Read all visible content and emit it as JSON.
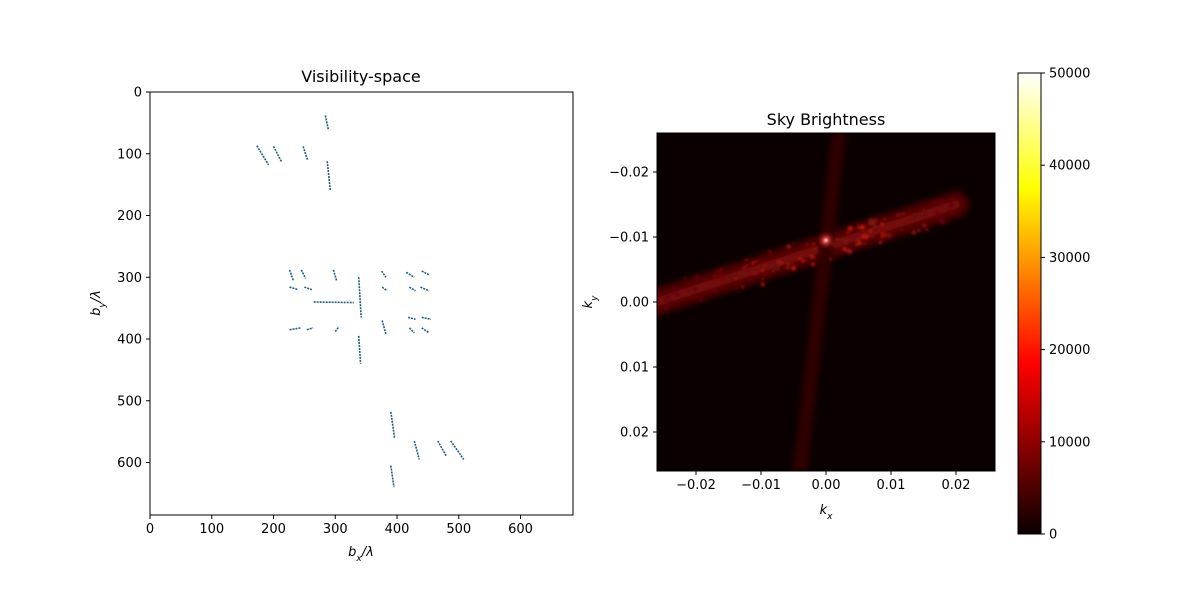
{
  "chart_data": [
    {
      "type": "scatter",
      "title": "Visibility-space",
      "xlabel": "b_x/λ",
      "ylabel": "b_y/λ",
      "xlim": [
        0,
        685
      ],
      "ylim": [
        685,
        0
      ],
      "y_inverted": true,
      "xticks": [
        "0",
        "100",
        "200",
        "300",
        "400",
        "500",
        "600"
      ],
      "yticks": [
        "0",
        "100",
        "200",
        "300",
        "400",
        "500",
        "600"
      ],
      "grid": false,
      "marker_color": "#1f5f7a",
      "track_segments": [
        {
          "x": [
            173,
            192
          ],
          "y": [
            87,
            118
          ]
        },
        {
          "x": [
            200,
            213
          ],
          "y": [
            88,
            113
          ]
        },
        {
          "x": [
            248,
            255
          ],
          "y": [
            88,
            110
          ]
        },
        {
          "x": [
            284,
            289
          ],
          "y": [
            38,
            62
          ]
        },
        {
          "x": [
            287,
            292
          ],
          "y": [
            112,
            160
          ]
        },
        {
          "x": [
            226,
            232
          ],
          "y": [
            288,
            305
          ]
        },
        {
          "x": [
            245,
            252
          ],
          "y": [
            288,
            302
          ]
        },
        {
          "x": [
            226,
            240
          ],
          "y": [
            316,
            320
          ]
        },
        {
          "x": [
            250,
            262
          ],
          "y": [
            316,
            320
          ]
        },
        {
          "x": [
            297,
            302
          ],
          "y": [
            288,
            305
          ]
        },
        {
          "x": [
            265,
            330
          ],
          "y": [
            340,
            341
          ]
        },
        {
          "x": [
            338,
            342
          ],
          "y": [
            300,
            365
          ]
        },
        {
          "x": [
            338,
            341
          ],
          "y": [
            395,
            440
          ]
        },
        {
          "x": [
            375,
            382
          ],
          "y": [
            290,
            300
          ]
        },
        {
          "x": [
            415,
            428
          ],
          "y": [
            292,
            300
          ]
        },
        {
          "x": [
            440,
            452
          ],
          "y": [
            290,
            296
          ]
        },
        {
          "x": [
            376,
            384
          ],
          "y": [
            316,
            322
          ]
        },
        {
          "x": [
            420,
            430
          ],
          "y": [
            316,
            322
          ]
        },
        {
          "x": [
            438,
            452
          ],
          "y": [
            316,
            322
          ]
        },
        {
          "x": [
            226,
            244
          ],
          "y": [
            385,
            382
          ]
        },
        {
          "x": [
            254,
            264
          ],
          "y": [
            385,
            382
          ]
        },
        {
          "x": [
            300,
            306
          ],
          "y": [
            388,
            380
          ]
        },
        {
          "x": [
            376,
            382
          ],
          "y": [
            370,
            392
          ]
        },
        {
          "x": [
            418,
            430
          ],
          "y": [
            365,
            368
          ]
        },
        {
          "x": [
            440,
            455
          ],
          "y": [
            365,
            368
          ]
        },
        {
          "x": [
            420,
            428
          ],
          "y": [
            382,
            390
          ]
        },
        {
          "x": [
            440,
            452
          ],
          "y": [
            382,
            390
          ]
        },
        {
          "x": [
            390,
            396
          ],
          "y": [
            518,
            560
          ]
        },
        {
          "x": [
            428,
            436
          ],
          "y": [
            565,
            595
          ]
        },
        {
          "x": [
            466,
            480
          ],
          "y": [
            565,
            590
          ]
        },
        {
          "x": [
            487,
            508
          ],
          "y": [
            565,
            595
          ]
        },
        {
          "x": [
            390,
            395
          ],
          "y": [
            605,
            640
          ]
        }
      ]
    },
    {
      "type": "heatmap",
      "title": "Sky Brightness",
      "xlabel": "k_x",
      "ylabel": "k_y",
      "xlim": [
        -0.026,
        0.026
      ],
      "ylim": [
        -0.026,
        0.026
      ],
      "y_inverted": true,
      "xticks": [
        "−0.02",
        "−0.01",
        "0.00",
        "0.01",
        "0.02"
      ],
      "yticks": [
        "−0.02",
        "−0.01",
        "0.00",
        "0.01",
        "0.02"
      ],
      "colormap": "hot",
      "colorbar": {
        "min": 0,
        "max": 50000,
        "ticks": [
          "0",
          "10000",
          "20000",
          "30000",
          "40000",
          "50000"
        ]
      },
      "peak": {
        "kx": 0.0,
        "ky": -0.0095,
        "value": 50000
      },
      "dominant_streak": {
        "from": [
          -0.026,
          0.0
        ],
        "to": [
          0.02,
          -0.015
        ]
      }
    }
  ]
}
